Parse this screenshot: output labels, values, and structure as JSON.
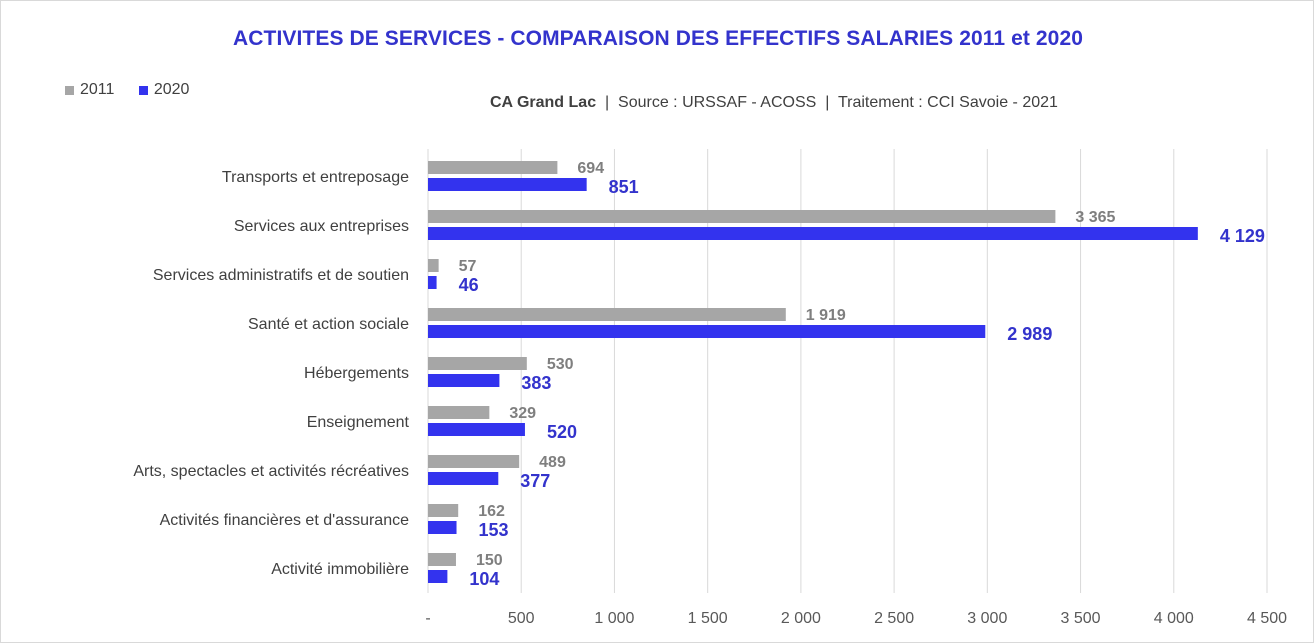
{
  "chart_data": {
    "type": "bar",
    "orientation": "horizontal",
    "title": "ACTIVITES DE SERVICES - COMPARAISON DES EFFECTIFS SALARIES 2011 et 2020",
    "subtitle": {
      "region": "CA Grand Lac",
      "sep": "|",
      "source": "Source : URSSAF - ACOSS",
      "treatment": "Traitement : CCI Savoie - 2021"
    },
    "categories": [
      "Transports et entreposage",
      "Services aux entreprises",
      "Services administratifs et de soutien",
      "Santé et action sociale",
      "Hébergements",
      "Enseignement",
      "Arts, spectacles et activités récréatives",
      "Activités financières et d'assurance",
      "Activité immobilière"
    ],
    "series": [
      {
        "name": "2011",
        "color": "#a6a6a6",
        "values": [
          694,
          3365,
          57,
          1919,
          530,
          329,
          489,
          162,
          150
        ],
        "labels": [
          "694",
          "3 365",
          "57",
          "1 919",
          "530",
          "329",
          "489",
          "162",
          "150"
        ]
      },
      {
        "name": "2020",
        "color": "#3333ee",
        "values": [
          851,
          4129,
          46,
          2989,
          383,
          520,
          377,
          153,
          104
        ],
        "labels": [
          "851",
          "4 129",
          "46",
          "2 989",
          "383",
          "520",
          "377",
          "153",
          "104"
        ]
      }
    ],
    "xlim": [
      0,
      4500
    ],
    "xticks": [
      0,
      500,
      1000,
      1500,
      2000,
      2500,
      3000,
      3500,
      4000,
      4500
    ],
    "xtick_labels": [
      "-",
      "500",
      "1 000",
      "1 500",
      "2 000",
      "2 500",
      "3 000",
      "3 500",
      "4 000",
      "4 500"
    ],
    "grid": true,
    "legend_position": "top-left"
  }
}
